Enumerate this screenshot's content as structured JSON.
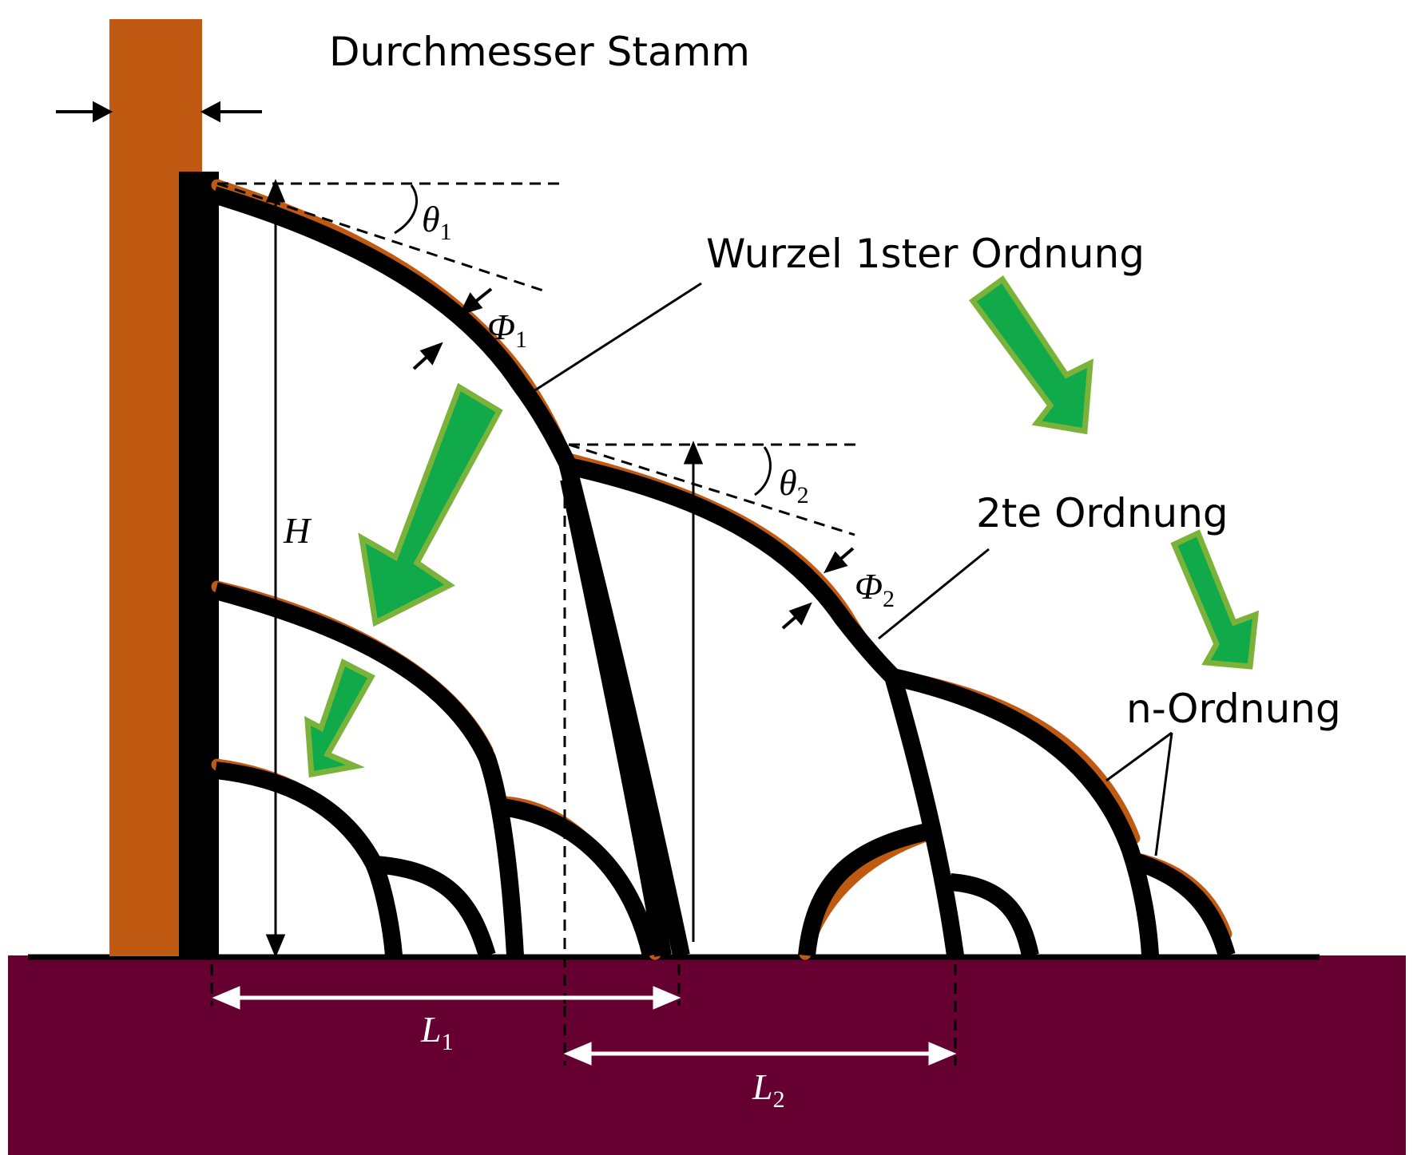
{
  "labels": {
    "trunk_diameter": "Durchmesser Stamm",
    "first_order": "Wurzel 1ster Ordnung",
    "second_order": "2te Ordnung",
    "n_order": "n-Ordnung"
  },
  "symbols": {
    "theta1": {
      "base": "θ",
      "sub": "1"
    },
    "theta2": {
      "base": "θ",
      "sub": "2"
    },
    "phi1": {
      "base": "Φ",
      "sub": "1"
    },
    "phi2": {
      "base": "Φ",
      "sub": "2"
    },
    "height": "H",
    "l1": {
      "base": "L",
      "sub": "1"
    },
    "l2": {
      "base": "L",
      "sub": "2"
    }
  },
  "colors": {
    "trunk": "#c05a12",
    "soil": "#650030",
    "root": "#000000",
    "arrow_fill": "#11aa4a",
    "arrow_border": "#7ab23a",
    "dimension_on_soil": "#ffffff"
  }
}
